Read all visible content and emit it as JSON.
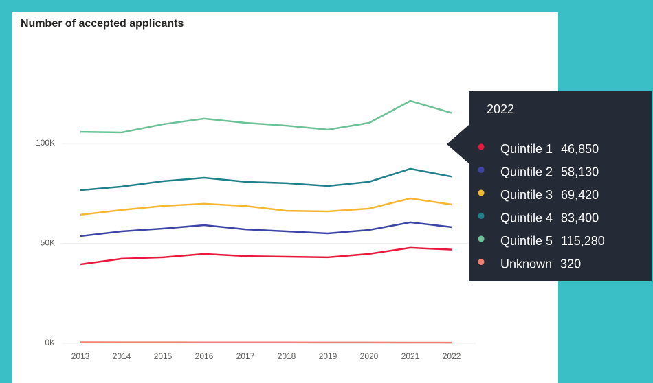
{
  "chart_data": {
    "type": "line",
    "title": "Number of accepted applicants",
    "categories": [
      "2013",
      "2014",
      "2015",
      "2016",
      "2017",
      "2018",
      "2019",
      "2020",
      "2021",
      "2022"
    ],
    "ylim": [
      0,
      130000
    ],
    "yticks": [
      {
        "value": 0,
        "label": "0K"
      },
      {
        "value": 50000,
        "label": "50K"
      },
      {
        "value": 100000,
        "label": "100K"
      }
    ],
    "grid": true,
    "series": [
      {
        "name": "Quintile 1",
        "color": "#e8193c",
        "values": [
          39500,
          42300,
          43000,
          44700,
          43600,
          43300,
          43000,
          44700,
          47800,
          46850
        ],
        "value_labels": [
          null,
          null,
          null,
          null,
          null,
          null,
          null,
          null,
          null,
          "46,850"
        ]
      },
      {
        "name": "Quintile 2",
        "color": "#3c45a5",
        "values": [
          53600,
          56000,
          57400,
          59100,
          57000,
          56000,
          55000,
          56700,
          60500,
          58130
        ],
        "value_labels": [
          null,
          null,
          null,
          null,
          null,
          null,
          null,
          null,
          null,
          "58,130"
        ]
      },
      {
        "name": "Quintile 3",
        "color": "#f5b731",
        "values": [
          64300,
          66700,
          68700,
          69800,
          68700,
          66300,
          66000,
          67400,
          72500,
          69420
        ],
        "value_labels": [
          null,
          null,
          null,
          null,
          null,
          null,
          null,
          null,
          null,
          "69,420"
        ]
      },
      {
        "name": "Quintile 4",
        "color": "#1f7f8a",
        "values": [
          76600,
          78400,
          81100,
          82800,
          80800,
          80100,
          78700,
          80800,
          87300,
          83400
        ],
        "value_labels": [
          null,
          null,
          null,
          null,
          null,
          null,
          null,
          null,
          null,
          "83,400"
        ]
      },
      {
        "name": "Quintile 5",
        "color": "#6cc196",
        "values": [
          105800,
          105500,
          109600,
          112400,
          110300,
          108900,
          106900,
          110300,
          121300,
          115280
        ],
        "value_labels": [
          null,
          null,
          null,
          null,
          null,
          null,
          null,
          null,
          null,
          "115,280"
        ]
      },
      {
        "name": "Unknown",
        "color": "#f08070",
        "values": [
          500,
          480,
          460,
          450,
          430,
          420,
          400,
          380,
          350,
          320
        ],
        "value_labels": [
          null,
          null,
          null,
          null,
          null,
          null,
          null,
          null,
          null,
          "320"
        ]
      }
    ]
  }
}
